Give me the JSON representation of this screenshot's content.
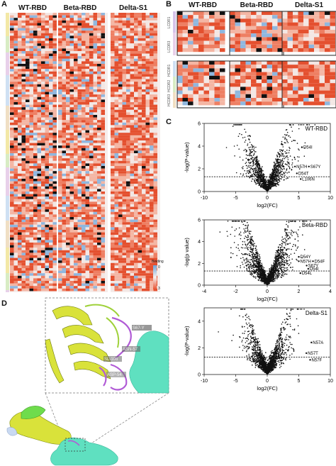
{
  "panels": {
    "A": {
      "letter": "A",
      "columns": [
        "WT-RBD",
        "Beta-RBD",
        "Delta-S1"
      ],
      "legend_title": "Binding",
      "legend_min": "0",
      "legend_max": "3",
      "colors": {
        "high": "#e8502f",
        "mid": "#f6f0ee",
        "low": "#6fa3d6",
        "mark": "#111111"
      }
    },
    "B": {
      "letter": "B",
      "columns": [
        "WT-RBD",
        "Beta-RBD",
        "Delta-S1"
      ],
      "row_groups": [
        "LCDR1",
        "LCDR3",
        "HCDR1",
        "HCDR2",
        "HCDR3"
      ]
    },
    "C": {
      "letter": "C",
      "plots": [
        {
          "title": "WT-RBD",
          "xlabel": "log2(FC)",
          "ylabel": "-log(P-value)",
          "xticks": [
            "-10",
            "-5",
            "0",
            "5",
            "10"
          ],
          "yticks": [
            "0",
            "2",
            "4",
            "6"
          ],
          "annotations": [
            "D54I",
            "N57H",
            "S67Y",
            "D54T",
            "L106N"
          ]
        },
        {
          "title": "Beta-RBD",
          "xlabel": "log2(FC)",
          "ylabel": "-log(p value)",
          "xticks": [
            "-4",
            "-2",
            "0",
            "2",
            "4"
          ],
          "yticks": [
            "0",
            "2",
            "4",
            "6"
          ],
          "annotations": [
            "D54Y",
            "N57H",
            "D54F",
            "S67Y",
            "D54I",
            "D54L"
          ]
        },
        {
          "title": "Delta-S1",
          "xlabel": "log2(FC)",
          "ylabel": "-log(P-value)",
          "xticks": [
            "-10",
            "-5",
            "0",
            "5",
            "10"
          ],
          "yticks": [
            "0",
            "2",
            "4"
          ],
          "annotations": [
            "N57A",
            "N57T",
            "N57F"
          ]
        }
      ]
    },
    "D": {
      "letter": "D",
      "residue_labels": [
        "S67-Y",
        "ASN-57",
        "SL-106",
        "ASP-54"
      ],
      "colors": {
        "antibody": "#d9e23a",
        "antibody_light": "#9fd13a",
        "cdr": "#b15bd6",
        "rbd": "#5fe0c0",
        "pale": "#c9d9f2"
      }
    }
  },
  "chart_data": [
    {
      "type": "scatter",
      "title": "WT-RBD",
      "xlabel": "log2(FC)",
      "ylabel": "-log(P-value)",
      "xlim": [
        -10,
        10
      ],
      "ylim": [
        0,
        6
      ],
      "threshold_y": 1.3,
      "labeled_points": [
        {
          "label": "D54I",
          "x": 5.5,
          "y": 3.9
        },
        {
          "label": "N57H",
          "x": 4.4,
          "y": 2.2
        },
        {
          "label": "S67Y",
          "x": 6.6,
          "y": 2.2
        },
        {
          "label": "D54T",
          "x": 4.7,
          "y": 1.6
        },
        {
          "label": "L106N",
          "x": 5.3,
          "y": 1.1
        }
      ]
    },
    {
      "type": "scatter",
      "title": "Beta-RBD",
      "xlabel": "log2(FC)",
      "ylabel": "-log(p value)",
      "xlim": [
        -4,
        4
      ],
      "ylim": [
        0,
        6
      ],
      "threshold_y": 1.3,
      "labeled_points": [
        {
          "label": "D54Y",
          "x": 2.0,
          "y": 2.6
        },
        {
          "label": "N57H",
          "x": 2.0,
          "y": 2.2
        },
        {
          "label": "D54F",
          "x": 2.9,
          "y": 2.2
        },
        {
          "label": "S67Y",
          "x": 2.5,
          "y": 1.8
        },
        {
          "label": "D54I",
          "x": 2.6,
          "y": 1.5
        },
        {
          "label": "D54L",
          "x": 2.1,
          "y": 1.1
        }
      ]
    },
    {
      "type": "scatter",
      "title": "Delta-S1",
      "xlabel": "log2(FC)",
      "ylabel": "-log(P-value)",
      "xlim": [
        -10,
        10
      ],
      "ylim": [
        0,
        5
      ],
      "threshold_y": 1.3,
      "labeled_points": [
        {
          "label": "N57A",
          "x": 7.0,
          "y": 2.4
        },
        {
          "label": "N57T",
          "x": 6.2,
          "y": 1.6
        },
        {
          "label": "N57F",
          "x": 6.8,
          "y": 1.1
        }
      ]
    }
  ]
}
